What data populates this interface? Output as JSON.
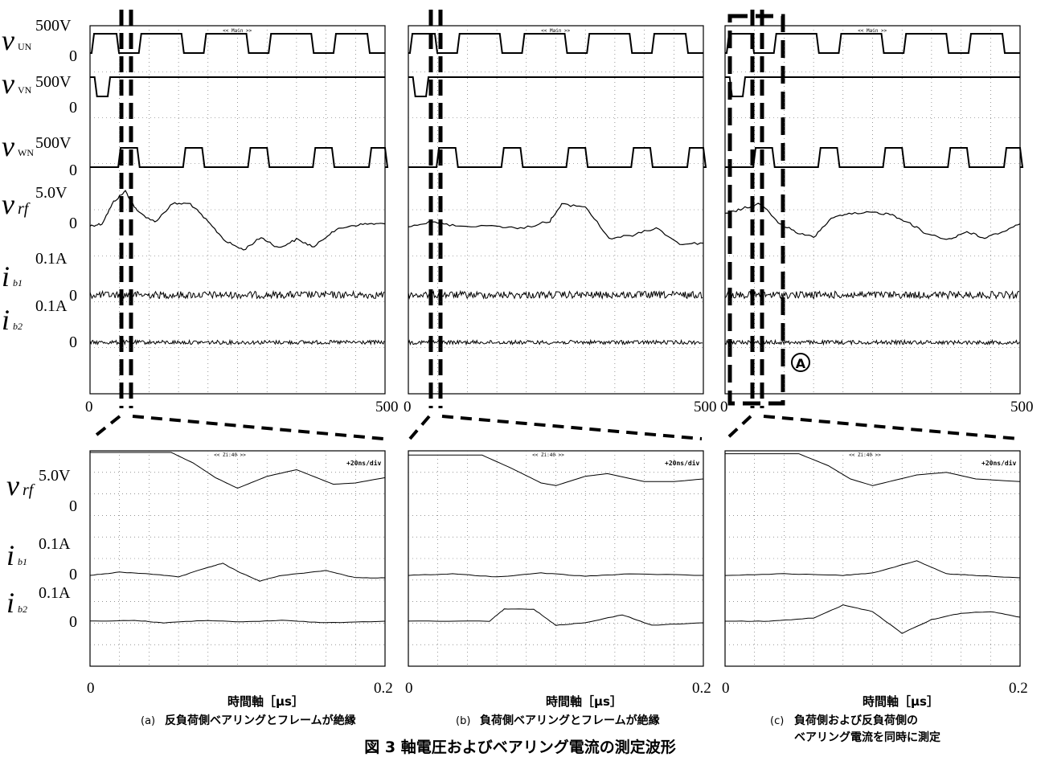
{
  "figure": {
    "caption": "図 3 軸電圧およびベアリング電流の測定波形",
    "marker": "A",
    "zoom_header": "<< Zi:40 >>",
    "zoom_scale": "+20ns/div",
    "main_header": "<< Main >>"
  },
  "row_labels": {
    "top": [
      {
        "symbol": "v",
        "sub": "UN",
        "scale": "500V",
        "zero": "0"
      },
      {
        "symbol": "v",
        "sub": "VN",
        "scale": "500V",
        "zero": "0"
      },
      {
        "symbol": "v",
        "sub": "WN",
        "scale": "500V",
        "zero": "0"
      },
      {
        "symbol": "v",
        "sub": "rf",
        "scale": "5.0V",
        "zero": "0"
      },
      {
        "symbol": "i",
        "sub": "b1",
        "scale": "0.1A",
        "zero": "0"
      },
      {
        "symbol": "i",
        "sub": "b2",
        "scale": "0.1A",
        "zero": "0"
      }
    ],
    "bottom": [
      {
        "symbol": "v",
        "sub": "rf",
        "scale": "5.0V",
        "zero": "0"
      },
      {
        "symbol": "i",
        "sub": "b1",
        "scale": "0.1A",
        "zero": "0"
      },
      {
        "symbol": "i",
        "sub": "b2",
        "scale": "0.1A",
        "zero": "0"
      }
    ]
  },
  "panels": [
    {
      "id": "a",
      "caption_tag": "(a)",
      "caption": "反負荷側ベアリングとフレームが絶縁",
      "caption2": ""
    },
    {
      "id": "b",
      "caption_tag": "(b)",
      "caption": "負荷側ベアリングとフレームが絶縁",
      "caption2": ""
    },
    {
      "id": "c",
      "caption_tag": "(c)",
      "caption": "負荷側および反負荷側の",
      "caption2": "ベアリング電流を同時に測定"
    }
  ],
  "chart_data": [
    {
      "type": "line",
      "name": "overview",
      "x_ticks": [
        "0",
        "500"
      ],
      "xlim": [
        0,
        500
      ],
      "series_units": {
        "vUN": "500V",
        "vVN": "500V",
        "vWN": "500V",
        "vrf": "5.0V",
        "ib1": "0.1A",
        "ib2": "0.1A"
      },
      "panels": {
        "a": {
          "vUN_high_intervals": [
            [
              0,
              45
            ],
            [
              80,
              155
            ],
            [
              190,
              265
            ],
            [
              300,
              375
            ],
            [
              410,
              470
            ]
          ],
          "vVN_low_intervals": [
            [
              5,
              30
            ]
          ],
          "vWN_high_intervals": [
            [
              45,
              80
            ],
            [
              155,
              190
            ],
            [
              265,
              300
            ],
            [
              375,
              410
            ],
            [
              470,
              500
            ]
          ],
          "vrf": [
            [
              0,
              0
            ],
            [
              20,
              0.2
            ],
            [
              40,
              2.5
            ],
            [
              60,
              3.6
            ],
            [
              80,
              1.5
            ],
            [
              110,
              0.4
            ],
            [
              140,
              2.3
            ],
            [
              170,
              2.3
            ],
            [
              200,
              0.4
            ],
            [
              230,
              -1.6
            ],
            [
              260,
              -2.5
            ],
            [
              290,
              -1.2
            ],
            [
              320,
              -2.3
            ],
            [
              350,
              -1.4
            ],
            [
              380,
              -2.2
            ],
            [
              410,
              -0.6
            ],
            [
              440,
              0
            ],
            [
              470,
              0.2
            ],
            [
              500,
              0.2
            ]
          ]
        },
        "b": {
          "vUN_high_intervals": [
            [
              0,
              45
            ],
            [
              80,
              155
            ],
            [
              190,
              265
            ],
            [
              300,
              375
            ],
            [
              410,
              470
            ]
          ],
          "vVN_low_intervals": [
            [
              5,
              30
            ]
          ],
          "vWN_high_intervals": [
            [
              45,
              80
            ],
            [
              155,
              190
            ],
            [
              265,
              300
            ],
            [
              375,
              410
            ],
            [
              470,
              500
            ]
          ],
          "vrf": [
            [
              0,
              0
            ],
            [
              40,
              0.4
            ],
            [
              80,
              0
            ],
            [
              150,
              0
            ],
            [
              190,
              -0.3
            ],
            [
              240,
              0.5
            ],
            [
              260,
              2.2
            ],
            [
              300,
              2.0
            ],
            [
              340,
              -1.3
            ],
            [
              380,
              -1.0
            ],
            [
              420,
              -0.2
            ],
            [
              460,
              -1.9
            ],
            [
              500,
              -1.8
            ]
          ]
        },
        "c": {
          "vUN_high_intervals": [
            [
              0,
              45
            ],
            [
              80,
              155
            ],
            [
              190,
              265
            ],
            [
              300,
              375
            ],
            [
              410,
              470
            ]
          ],
          "vVN_low_intervals": [
            [
              5,
              30
            ]
          ],
          "vWN_high_intervals": [
            [
              45,
              80
            ],
            [
              155,
              190
            ],
            [
              265,
              300
            ],
            [
              375,
              410
            ],
            [
              470,
              500
            ]
          ],
          "vrf": [
            [
              0,
              1.2
            ],
            [
              30,
              1.8
            ],
            [
              60,
              2.3
            ],
            [
              90,
              0.4
            ],
            [
              120,
              -0.7
            ],
            [
              150,
              -1.2
            ],
            [
              180,
              0.8
            ],
            [
              210,
              1.2
            ],
            [
              250,
              1.4
            ],
            [
              280,
              1.2
            ],
            [
              310,
              0.4
            ],
            [
              340,
              -0.8
            ],
            [
              380,
              -1.4
            ],
            [
              410,
              -0.6
            ],
            [
              440,
              -1.3
            ],
            [
              470,
              -0.6
            ],
            [
              500,
              0.2
            ]
          ]
        }
      }
    },
    {
      "type": "line",
      "name": "zoom",
      "xlabel": "時間軸［μs］",
      "x_ticks": [
        "0",
        "0.2"
      ],
      "xlim": [
        0,
        0.2
      ],
      "series_units": {
        "vrf": "5.0V",
        "ib1": "0.1A",
        "ib2": "0.1A"
      },
      "panels": {
        "a": {
          "vrf": [
            [
              0,
              1.0
            ],
            [
              0.055,
              1.0
            ],
            [
              0.07,
              0.6
            ],
            [
              0.085,
              0.05
            ],
            [
              0.1,
              -0.35
            ],
            [
              0.12,
              0.1
            ],
            [
              0.14,
              0.35
            ],
            [
              0.165,
              -0.2
            ],
            [
              0.18,
              -0.15
            ],
            [
              0.2,
              0.05
            ]
          ],
          "ib1": [
            [
              0,
              0
            ],
            [
              0.02,
              0.04
            ],
            [
              0.04,
              0.02
            ],
            [
              0.06,
              -0.02
            ],
            [
              0.08,
              0.1
            ],
            [
              0.09,
              0.15
            ],
            [
              0.1,
              0.05
            ],
            [
              0.115,
              -0.07
            ],
            [
              0.13,
              0
            ],
            [
              0.16,
              0.06
            ],
            [
              0.18,
              -0.03
            ],
            [
              0.2,
              -0.03
            ]
          ],
          "ib2": [
            [
              0,
              0
            ],
            [
              0.03,
              0.01
            ],
            [
              0.05,
              -0.02
            ],
            [
              0.08,
              0.01
            ],
            [
              0.1,
              -0.01
            ],
            [
              0.13,
              0.01
            ],
            [
              0.16,
              -0.02
            ],
            [
              0.2,
              0
            ]
          ]
        },
        "b": {
          "vrf": [
            [
              0,
              0.9
            ],
            [
              0.05,
              0.9
            ],
            [
              0.07,
              0.4
            ],
            [
              0.09,
              -0.15
            ],
            [
              0.1,
              -0.25
            ],
            [
              0.12,
              0.1
            ],
            [
              0.135,
              0.2
            ],
            [
              0.16,
              -0.1
            ],
            [
              0.18,
              -0.1
            ],
            [
              0.2,
              0.0
            ]
          ],
          "ib1": [
            [
              0,
              0
            ],
            [
              0.03,
              0.02
            ],
            [
              0.06,
              -0.02
            ],
            [
              0.09,
              0.03
            ],
            [
              0.12,
              -0.01
            ],
            [
              0.15,
              0.02
            ],
            [
              0.2,
              0
            ]
          ],
          "ib2": [
            [
              0,
              0
            ],
            [
              0.055,
              0
            ],
            [
              0.065,
              0.15
            ],
            [
              0.085,
              0.15
            ],
            [
              0.1,
              -0.05
            ],
            [
              0.12,
              -0.02
            ],
            [
              0.145,
              0.08
            ],
            [
              0.165,
              -0.05
            ],
            [
              0.2,
              -0.02
            ]
          ]
        },
        "c": {
          "vrf": [
            [
              0,
              0.95
            ],
            [
              0.05,
              0.95
            ],
            [
              0.07,
              0.5
            ],
            [
              0.085,
              0
            ],
            [
              0.1,
              -0.25
            ],
            [
              0.13,
              0.15
            ],
            [
              0.15,
              0.25
            ],
            [
              0.17,
              0
            ],
            [
              0.2,
              -0.1
            ]
          ],
          "ib1": [
            [
              0,
              0
            ],
            [
              0.04,
              0.02
            ],
            [
              0.08,
              0
            ],
            [
              0.1,
              0.03
            ],
            [
              0.13,
              0.18
            ],
            [
              0.15,
              0.02
            ],
            [
              0.17,
              0
            ],
            [
              0.2,
              -0.03
            ]
          ],
          "ib2": [
            [
              0,
              0
            ],
            [
              0.03,
              0
            ],
            [
              0.06,
              0.04
            ],
            [
              0.08,
              0.2
            ],
            [
              0.1,
              0.12
            ],
            [
              0.12,
              -0.15
            ],
            [
              0.14,
              0.02
            ],
            [
              0.16,
              0.1
            ],
            [
              0.18,
              0.12
            ],
            [
              0.2,
              0.05
            ]
          ]
        }
      }
    }
  ]
}
